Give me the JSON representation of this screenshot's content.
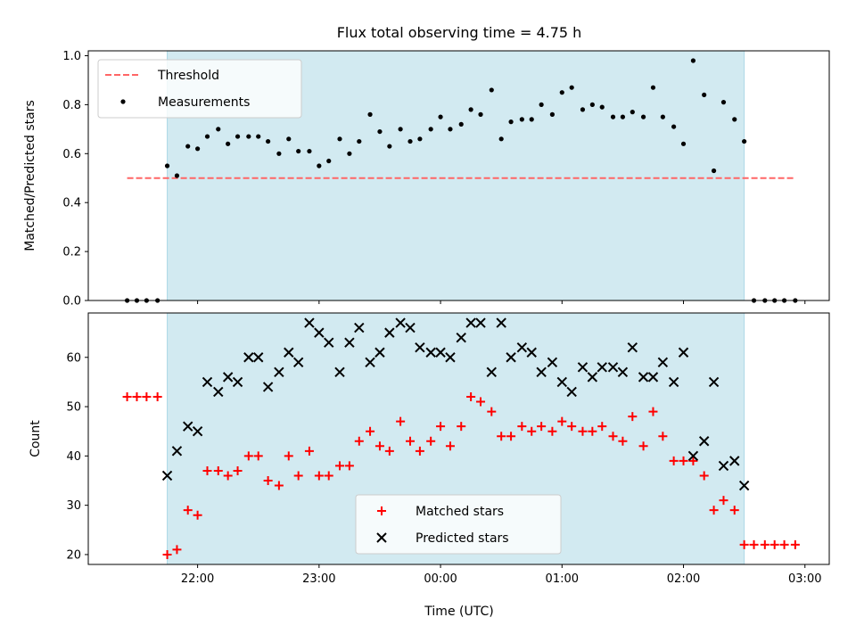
{
  "chart_data": {
    "title": "Flux total observing time = 4.75 h",
    "xlabel": "Time (UTC)",
    "x_unit": "hours UTC (values >= 24 are after midnight)",
    "xlim": [
      21.1,
      27.2
    ],
    "x_ticks": [
      {
        "value": 22,
        "label": "22:00"
      },
      {
        "value": 23,
        "label": "23:00"
      },
      {
        "value": 24,
        "label": "00:00"
      },
      {
        "value": 25,
        "label": "01:00"
      },
      {
        "value": 26,
        "label": "02:00"
      },
      {
        "value": 27,
        "label": "03:00"
      }
    ],
    "shaded_interval": {
      "x": [
        21.75,
        26.5
      ],
      "color": "#add8e6"
    },
    "top_panel": {
      "type": "scatter",
      "ylabel": "Matched/Predicted stars",
      "ylim": [
        0.0,
        1.02
      ],
      "y_ticks": [
        "0.0",
        "0.2",
        "0.4",
        "0.6",
        "0.8",
        "1.0"
      ],
      "legend_position": "upper left",
      "threshold": {
        "name": "Threshold",
        "y": 0.5,
        "x_range": [
          21.42,
          26.92
        ],
        "color": "#ff6666"
      },
      "series": [
        {
          "name": "Measurements",
          "color": "#000000",
          "x": [
            21.42,
            21.5,
            21.58,
            21.67,
            21.75,
            21.83,
            21.92,
            22.0,
            22.08,
            22.17,
            22.25,
            22.33,
            22.42,
            22.5,
            22.58,
            22.67,
            22.75,
            22.83,
            22.92,
            23.0,
            23.08,
            23.17,
            23.25,
            23.33,
            23.42,
            23.5,
            23.58,
            23.67,
            23.75,
            23.83,
            23.92,
            24.0,
            24.08,
            24.17,
            24.25,
            24.33,
            24.42,
            24.5,
            24.58,
            24.67,
            24.75,
            24.83,
            24.92,
            25.0,
            25.08,
            25.17,
            25.25,
            25.33,
            25.42,
            25.5,
            25.58,
            25.67,
            25.75,
            25.83,
            25.92,
            26.0,
            26.08,
            26.17,
            26.25,
            26.33,
            26.42,
            26.5,
            26.58,
            26.67,
            26.75,
            26.83,
            26.92
          ],
          "y": [
            0.0,
            0.0,
            0.0,
            0.0,
            0.55,
            0.51,
            0.63,
            0.62,
            0.67,
            0.7,
            0.64,
            0.67,
            0.67,
            0.67,
            0.65,
            0.6,
            0.66,
            0.61,
            0.61,
            0.55,
            0.57,
            0.66,
            0.6,
            0.65,
            0.76,
            0.69,
            0.63,
            0.7,
            0.65,
            0.66,
            0.7,
            0.75,
            0.7,
            0.72,
            0.78,
            0.76,
            0.86,
            0.66,
            0.73,
            0.74,
            0.74,
            0.8,
            0.76,
            0.85,
            0.87,
            0.78,
            0.8,
            0.79,
            0.75,
            0.75,
            0.77,
            0.75,
            0.87,
            0.75,
            0.71,
            0.64,
            0.98,
            0.84,
            0.53,
            0.81,
            0.74,
            0.65,
            0.0,
            0.0,
            0.0,
            0.0,
            0.0
          ]
        }
      ]
    },
    "bottom_panel": {
      "type": "scatter",
      "ylabel": "Count",
      "ylim": [
        18,
        69
      ],
      "y_ticks": [
        "20",
        "30",
        "40",
        "50",
        "60"
      ],
      "legend_position": "lower center",
      "series": [
        {
          "name": "Matched stars",
          "marker": "+",
          "color": "#ff0000",
          "x": [
            21.42,
            21.5,
            21.58,
            21.67,
            21.75,
            21.83,
            21.92,
            22.0,
            22.08,
            22.17,
            22.25,
            22.33,
            22.42,
            22.5,
            22.58,
            22.67,
            22.75,
            22.83,
            22.92,
            23.0,
            23.08,
            23.17,
            23.25,
            23.33,
            23.42,
            23.5,
            23.58,
            23.67,
            23.75,
            23.83,
            23.92,
            24.0,
            24.08,
            24.17,
            24.25,
            24.33,
            24.42,
            24.5,
            24.58,
            24.67,
            24.75,
            24.83,
            24.92,
            25.0,
            25.08,
            25.17,
            25.25,
            25.33,
            25.42,
            25.5,
            25.58,
            25.67,
            25.75,
            25.83,
            25.92,
            26.0,
            26.08,
            26.17,
            26.25,
            26.33,
            26.42,
            26.5,
            26.58,
            26.67,
            26.75,
            26.83,
            26.92
          ],
          "y": [
            52,
            52,
            52,
            52,
            20,
            21,
            29,
            28,
            37,
            37,
            36,
            37,
            40,
            40,
            35,
            34,
            40,
            36,
            41,
            36,
            36,
            38,
            38,
            43,
            45,
            42,
            41,
            47,
            43,
            41,
            43,
            46,
            42,
            46,
            52,
            51,
            49,
            44,
            44,
            46,
            45,
            46,
            45,
            47,
            46,
            45,
            45,
            46,
            44,
            43,
            48,
            42,
            49,
            44,
            39,
            39,
            39,
            36,
            29,
            31,
            29,
            22,
            22,
            22,
            22,
            22,
            22
          ]
        },
        {
          "name": "Predicted stars",
          "marker": "x",
          "color": "#000000",
          "x": [
            21.75,
            21.83,
            21.92,
            22.0,
            22.08,
            22.17,
            22.25,
            22.33,
            22.42,
            22.5,
            22.58,
            22.67,
            22.75,
            22.83,
            22.92,
            23.0,
            23.08,
            23.17,
            23.25,
            23.33,
            23.42,
            23.5,
            23.58,
            23.67,
            23.75,
            23.83,
            23.92,
            24.0,
            24.08,
            24.17,
            24.25,
            24.33,
            24.42,
            24.5,
            24.58,
            24.67,
            24.75,
            24.83,
            24.92,
            25.0,
            25.08,
            25.17,
            25.25,
            25.33,
            25.42,
            25.5,
            25.58,
            25.67,
            25.75,
            25.83,
            25.92,
            26.0,
            26.08,
            26.17,
            26.25,
            26.33,
            26.42,
            26.5
          ],
          "y": [
            36,
            41,
            46,
            45,
            55,
            53,
            56,
            55,
            60,
            60,
            54,
            57,
            61,
            59,
            67,
            65,
            63,
            57,
            63,
            66,
            59,
            61,
            65,
            67,
            66,
            62,
            61,
            61,
            60,
            64,
            67,
            67,
            57,
            67,
            60,
            62,
            61,
            57,
            59,
            55,
            53,
            58,
            56,
            58,
            58,
            57,
            62,
            56,
            56,
            59,
            55,
            61,
            40,
            43,
            55,
            38,
            39,
            34
          ]
        }
      ]
    }
  }
}
